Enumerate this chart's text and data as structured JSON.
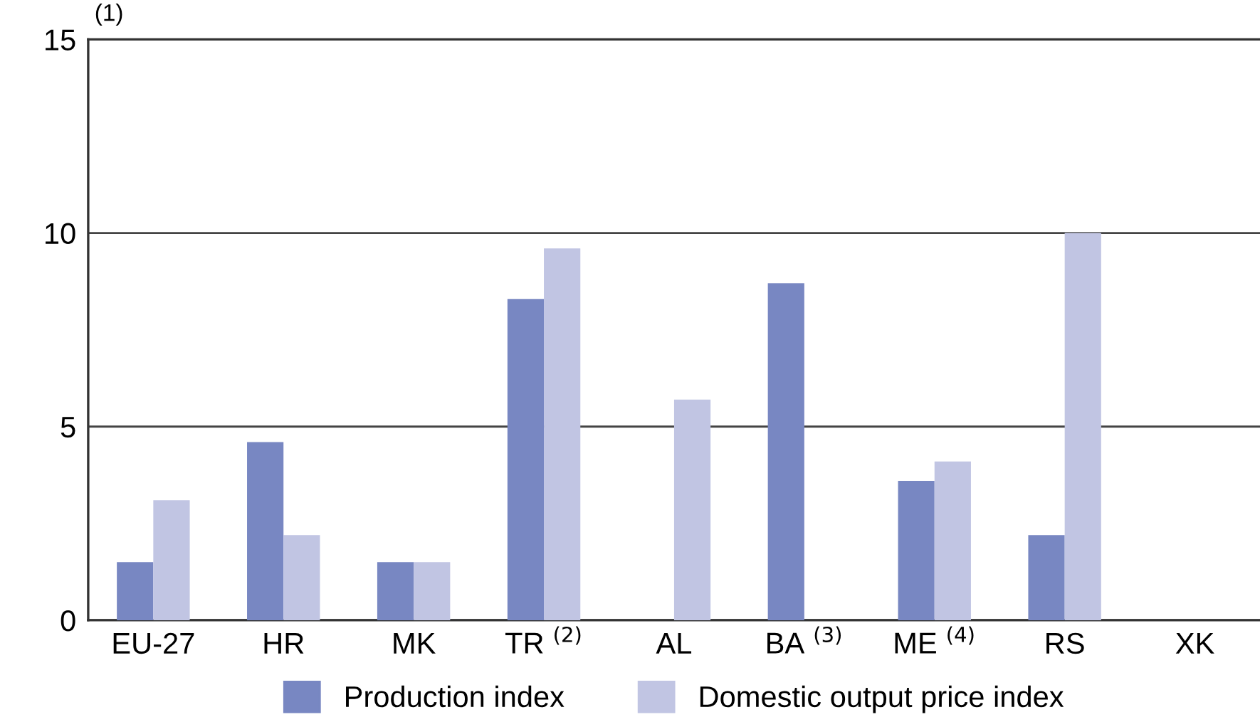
{
  "chart_data": {
    "type": "bar",
    "ylabel": "(1)",
    "categories": [
      "EU-27",
      "HR",
      "MK",
      "TR $^{(2)}$",
      "AL",
      "BA $^{(3)}$",
      "ME $^{(4)}$",
      "RS",
      "XK"
    ],
    "series": [
      {
        "name": "Production index",
        "color": "#7887c2",
        "values": [
          1.5,
          4.6,
          1.5,
          8.3,
          null,
          8.7,
          3.6,
          2.2,
          null
        ]
      },
      {
        "name": "Domestic output price index",
        "color": "#c1c5e3",
        "values": [
          3.1,
          2.2,
          1.5,
          9.6,
          5.7,
          null,
          4.1,
          10.0,
          null
        ]
      }
    ],
    "ylim": [
      0,
      15
    ],
    "yticks": [
      0,
      5,
      10,
      15
    ],
    "grid": "y",
    "legend": "bottom"
  }
}
